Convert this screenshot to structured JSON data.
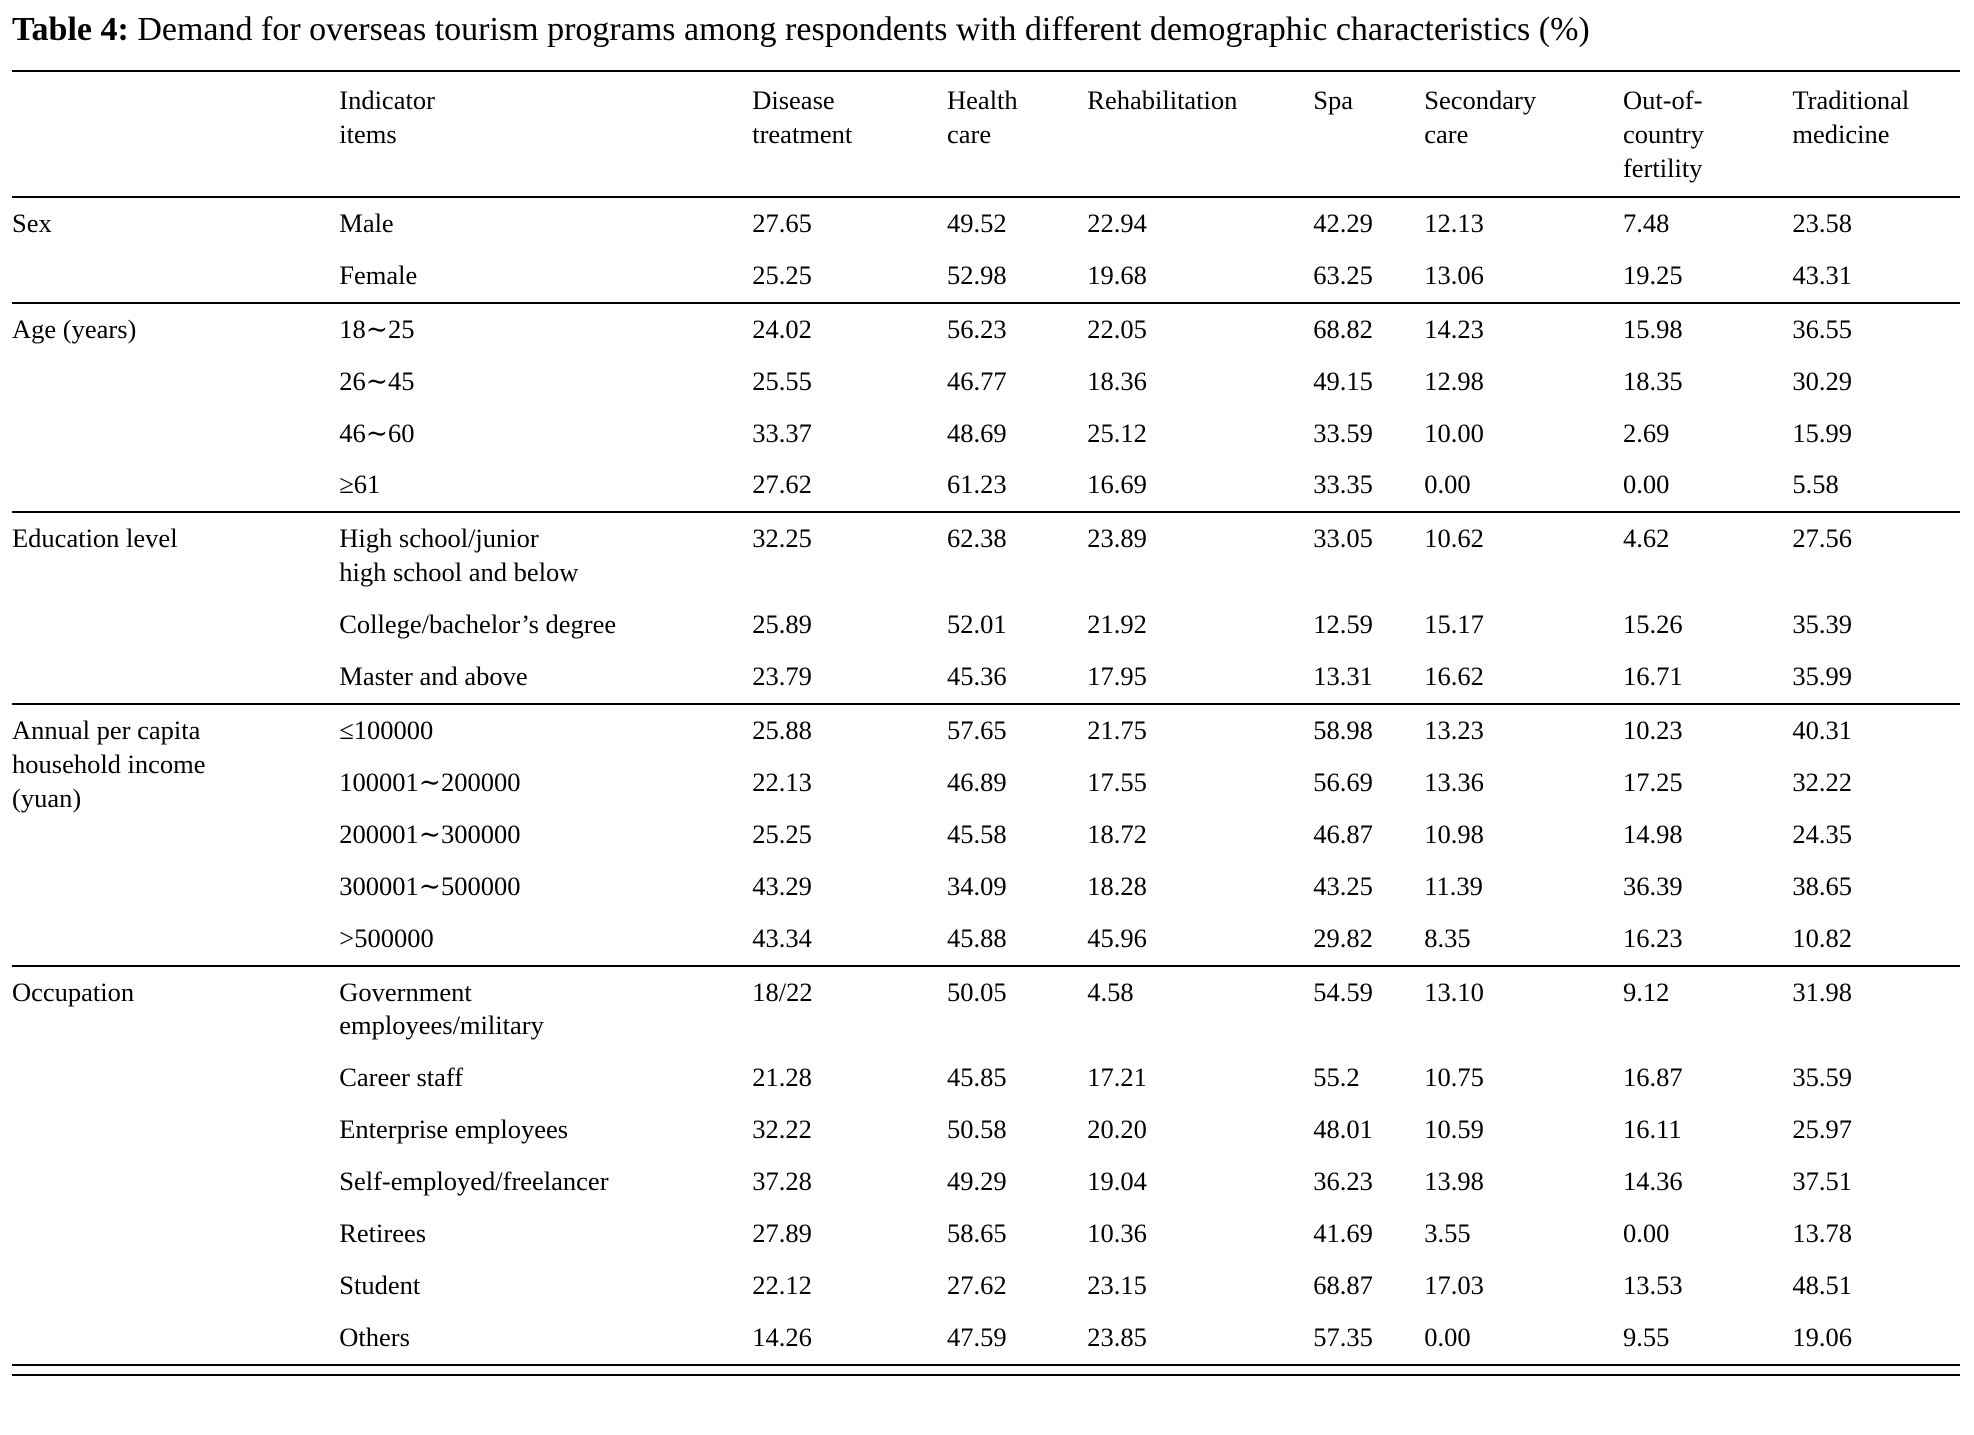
{
  "title": {
    "label": "Table 4:",
    "text": " Demand for overseas tourism programs among respondents with different demographic characteristics (%)"
  },
  "table": {
    "headers": [
      {
        "label": ""
      },
      {
        "label": "Indicator\nitems"
      },
      {
        "label": "Disease\ntreatment"
      },
      {
        "label": "Health\ncare"
      },
      {
        "label": "Rehabilitation"
      },
      {
        "label": "Spa"
      },
      {
        "label": "Secondary\ncare"
      },
      {
        "label": "Out-of-\ncountry\nfertility"
      },
      {
        "label": "Traditional\nmedicine"
      }
    ],
    "groups": [
      {
        "category": "Sex",
        "rows": [
          {
            "item": "Male",
            "values": [
              "27.65",
              "49.52",
              "22.94",
              "42.29",
              "12.13",
              "7.48",
              "23.58"
            ]
          },
          {
            "item": "Female",
            "values": [
              "25.25",
              "52.98",
              "19.68",
              "63.25",
              "13.06",
              "19.25",
              "43.31"
            ]
          }
        ]
      },
      {
        "category": "Age (years)",
        "rows": [
          {
            "item": "18∼25",
            "values": [
              "24.02",
              "56.23",
              "22.05",
              "68.82",
              "14.23",
              "15.98",
              "36.55"
            ]
          },
          {
            "item": "26∼45",
            "values": [
              "25.55",
              "46.77",
              "18.36",
              "49.15",
              "12.98",
              "18.35",
              "30.29"
            ]
          },
          {
            "item": "46∼60",
            "values": [
              "33.37",
              "48.69",
              "25.12",
              "33.59",
              "10.00",
              "2.69",
              "15.99"
            ]
          },
          {
            "item": "≥61",
            "values": [
              "27.62",
              "61.23",
              "16.69",
              "33.35",
              "0.00",
              "0.00",
              "5.58"
            ]
          }
        ]
      },
      {
        "category": "Education level",
        "rows": [
          {
            "item": "High school/junior\nhigh school and below",
            "values": [
              "32.25",
              "62.38",
              "23.89",
              "33.05",
              "10.62",
              "4.62",
              "27.56"
            ]
          },
          {
            "item": "College/bachelor’s degree",
            "values": [
              "25.89",
              "52.01",
              "21.92",
              "12.59",
              "15.17",
              "15.26",
              "35.39"
            ]
          },
          {
            "item": "Master and above",
            "values": [
              "23.79",
              "45.36",
              "17.95",
              "13.31",
              "16.62",
              "16.71",
              "35.99"
            ]
          }
        ]
      },
      {
        "category": "Annual per capita\nhousehold income\n(yuan)",
        "rows": [
          {
            "item": "≤100000",
            "values": [
              "25.88",
              "57.65",
              "21.75",
              "58.98",
              "13.23",
              "10.23",
              "40.31"
            ]
          },
          {
            "item": "100001∼200000",
            "values": [
              "22.13",
              "46.89",
              "17.55",
              "56.69",
              "13.36",
              "17.25",
              "32.22"
            ]
          },
          {
            "item": "200001∼300000",
            "values": [
              "25.25",
              "45.58",
              "18.72",
              "46.87",
              "10.98",
              "14.98",
              "24.35"
            ]
          },
          {
            "item": "300001∼500000",
            "values": [
              "43.29",
              "34.09",
              "18.28",
              "43.25",
              "11.39",
              "36.39",
              "38.65"
            ]
          },
          {
            "item": ">500000",
            "values": [
              "43.34",
              "45.88",
              "45.96",
              "29.82",
              "8.35",
              "16.23",
              "10.82"
            ]
          }
        ]
      },
      {
        "category": "Occupation",
        "rows": [
          {
            "item": "Government\nemployees/military",
            "values": [
              "18/22",
              "50.05",
              "4.58",
              "54.59",
              "13.10",
              "9.12",
              "31.98"
            ]
          },
          {
            "item": "Career staff",
            "values": [
              "21.28",
              "45.85",
              "17.21",
              "55.2",
              "10.75",
              "16.87",
              "35.59"
            ]
          },
          {
            "item": "Enterprise employees",
            "values": [
              "32.22",
              "50.58",
              "20.20",
              "48.01",
              "10.59",
              "16.11",
              "25.97"
            ]
          },
          {
            "item": "Self-employed/freelancer",
            "values": [
              "37.28",
              "49.29",
              "19.04",
              "36.23",
              "13.98",
              "14.36",
              "37.51"
            ]
          },
          {
            "item": "Retirees",
            "values": [
              "27.89",
              "58.65",
              "10.36",
              "41.69",
              "3.55",
              "0.00",
              "13.78"
            ]
          },
          {
            "item": "Student",
            "values": [
              "22.12",
              "27.62",
              "23.15",
              "68.87",
              "17.03",
              "13.53",
              "48.51"
            ]
          },
          {
            "item": "Others",
            "values": [
              "14.26",
              "47.59",
              "23.85",
              "57.35",
              "0.00",
              "9.55",
              "19.06"
            ]
          }
        ]
      }
    ]
  }
}
